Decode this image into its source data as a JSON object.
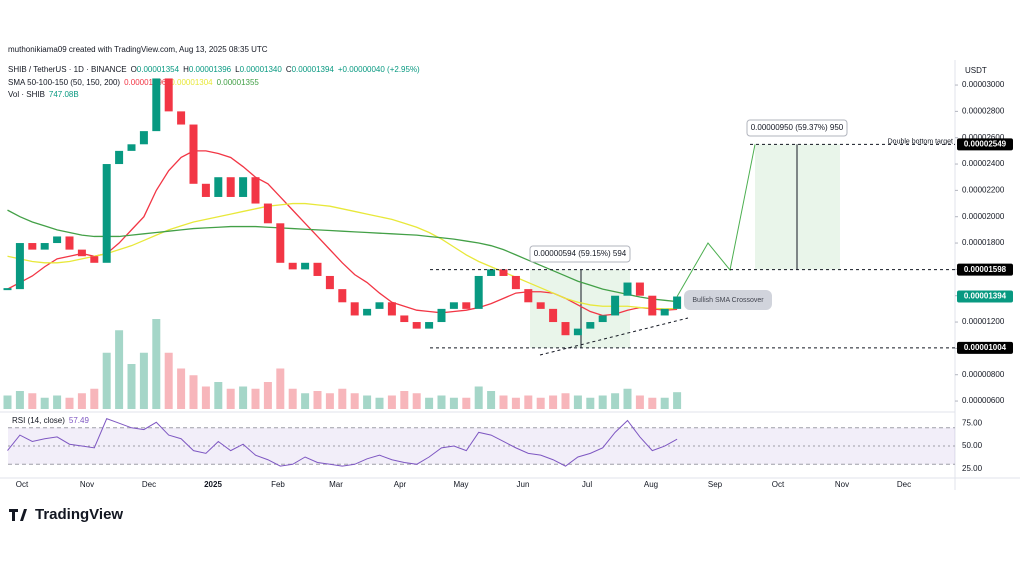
{
  "header": {
    "credit": "muthonikiama09 created with TradingView.com, Aug 13, 2025 08:35 UTC",
    "logo": "TradingView"
  },
  "chart_data": {
    "type": "candlestick",
    "symbol": "SHIB / TetherUS · 1D · BINANCE",
    "ohlc": [
      {
        "label": "O",
        "value": "0.00001354"
      },
      {
        "label": "H",
        "value": "0.00001396"
      },
      {
        "label": "L",
        "value": "0.00001340"
      },
      {
        "label": "C",
        "value": "0.00001394"
      }
    ],
    "change": "+0.00000040 (+2.95%)",
    "currency": "USDT",
    "xticks": [
      "Oct",
      "Nov",
      "Dec",
      "2025",
      "Feb",
      "Mar",
      "Apr",
      "May",
      "Jun",
      "Jul",
      "Aug",
      "Sep",
      "Oct",
      "Nov",
      "Dec"
    ],
    "ylim": [
      5.32e-06,
      3.175e-05
    ],
    "yticks": [
      {
        "value": 6e-06,
        "label": "0.00000600"
      },
      {
        "value": 8e-06,
        "label": "0.00000800"
      },
      {
        "value": 1e-05,
        "label": "0.00001000"
      },
      {
        "value": 1.2e-05,
        "label": "0.00001200"
      },
      {
        "value": 1.4e-05,
        "label": "0.00001400"
      },
      {
        "value": 1.6e-05,
        "label": "0.00001600"
      },
      {
        "value": 1.8e-05,
        "label": "0.00001800"
      },
      {
        "value": 2e-05,
        "label": "0.00002000"
      },
      {
        "value": 2.2e-05,
        "label": "0.00002200"
      },
      {
        "value": 2.4e-05,
        "label": "0.00002400"
      },
      {
        "value": 2.6e-05,
        "label": "0.00002600"
      },
      {
        "value": 2.8e-05,
        "label": "0.00002800"
      },
      {
        "value": 3e-05,
        "label": "0.00003000"
      }
    ],
    "close": [
      1.45e-05,
      1.8e-05,
      1.75e-05,
      1.8e-05,
      1.85e-05,
      1.75e-05,
      1.7e-05,
      1.65e-05,
      2.4e-05,
      2.5e-05,
      2.55e-05,
      2.65e-05,
      3.05e-05,
      2.8e-05,
      2.7e-05,
      2.25e-05,
      2.15e-05,
      2.3e-05,
      2.15e-05,
      2.3e-05,
      2.1e-05,
      1.95e-05,
      1.65e-05,
      1.6e-05,
      1.65e-05,
      1.55e-05,
      1.45e-05,
      1.35e-05,
      1.25e-05,
      1.3e-05,
      1.35e-05,
      1.25e-05,
      1.2e-05,
      1.15e-05,
      1.2e-05,
      1.3e-05,
      1.35e-05,
      1.3e-05,
      1.55e-05,
      1.6e-05,
      1.55e-05,
      1.45e-05,
      1.35e-05,
      1.3e-05,
      1.2e-05,
      1.1e-05,
      1.15e-05,
      1.2e-05,
      1.25e-05,
      1.4e-05,
      1.5e-05,
      1.4e-05,
      1.25e-05,
      1.3e-05,
      1.394e-05
    ],
    "up_color": "#089981",
    "down_color": "#f23645",
    "sma": {
      "label": "SMA 50-100-150 (50, 150, 200)",
      "series": [
        {
          "name": "0.00001296",
          "color": "#f23645",
          "values": [
            1.45e-05,
            1.5e-05,
            1.55e-05,
            1.62e-05,
            1.68e-05,
            1.7e-05,
            1.72e-05,
            1.7e-05,
            1.72e-05,
            1.8e-05,
            1.9e-05,
            2e-05,
            2.2e-05,
            2.35e-05,
            2.45e-05,
            2.5e-05,
            2.5e-05,
            2.48e-05,
            2.45e-05,
            2.38e-05,
            2.3e-05,
            2.25e-05,
            2.15e-05,
            2.05e-05,
            1.95e-05,
            1.85e-05,
            1.75e-05,
            1.65e-05,
            1.56e-05,
            1.5e-05,
            1.42e-05,
            1.35e-05,
            1.32e-05,
            1.29e-05,
            1.28e-05,
            1.27e-05,
            1.28e-05,
            1.29e-05,
            1.31e-05,
            1.34e-05,
            1.38e-05,
            1.42e-05,
            1.43e-05,
            1.43e-05,
            1.42e-05,
            1.38e-05,
            1.33e-05,
            1.28e-05,
            1.25e-05,
            1.26e-05,
            1.29e-05,
            1.31e-05,
            1.3e-05,
            1.29e-05,
            1.296e-05
          ]
        },
        {
          "name": "0.00001304",
          "color": "#e8e83a",
          "values": [
            1.7e-05,
            1.68e-05,
            1.66e-05,
            1.65e-05,
            1.65e-05,
            1.66e-05,
            1.68e-05,
            1.7e-05,
            1.72e-05,
            1.75e-05,
            1.78e-05,
            1.82e-05,
            1.86e-05,
            1.9e-05,
            1.93e-05,
            1.96e-05,
            1.98e-05,
            2e-05,
            2.02e-05,
            2.04e-05,
            2.06e-05,
            2.08e-05,
            2.09e-05,
            2.1e-05,
            2.1e-05,
            2.09e-05,
            2.08e-05,
            2.06e-05,
            2.04e-05,
            2.02e-05,
            2e-05,
            1.98e-05,
            1.95e-05,
            1.92e-05,
            1.88e-05,
            1.83e-05,
            1.77e-05,
            1.71e-05,
            1.66e-05,
            1.62e-05,
            1.58e-05,
            1.54e-05,
            1.5e-05,
            1.46e-05,
            1.42e-05,
            1.38e-05,
            1.35e-05,
            1.33e-05,
            1.32e-05,
            1.32e-05,
            1.32e-05,
            1.31e-05,
            1.305e-05,
            1.3e-05,
            1.304e-05
          ]
        },
        {
          "name": "0.00001355",
          "color": "#43a047",
          "values": [
            2.05e-05,
            2e-05,
            1.96e-05,
            1.93e-05,
            1.9e-05,
            1.88e-05,
            1.86e-05,
            1.85e-05,
            1.85e-05,
            1.85e-05,
            1.86e-05,
            1.87e-05,
            1.88e-05,
            1.89e-05,
            1.9e-05,
            1.91e-05,
            1.915e-05,
            1.92e-05,
            1.925e-05,
            1.925e-05,
            1.925e-05,
            1.92e-05,
            1.915e-05,
            1.91e-05,
            1.905e-05,
            1.9e-05,
            1.895e-05,
            1.89e-05,
            1.885e-05,
            1.88e-05,
            1.875e-05,
            1.87e-05,
            1.865e-05,
            1.86e-05,
            1.85e-05,
            1.84e-05,
            1.83e-05,
            1.815e-05,
            1.8e-05,
            1.78e-05,
            1.75e-05,
            1.71e-05,
            1.67e-05,
            1.63e-05,
            1.59e-05,
            1.55e-05,
            1.51e-05,
            1.48e-05,
            1.45e-05,
            1.43e-05,
            1.41e-05,
            1.39e-05,
            1.375e-05,
            1.365e-05,
            1.355e-05
          ]
        }
      ]
    },
    "volume": {
      "label": "Vol · SHIB",
      "last": "747.08B",
      "color": "#26a69a",
      "values": [
        600,
        800,
        700,
        500,
        600,
        500,
        700,
        900,
        2500,
        3500,
        2000,
        2500,
        4000,
        2500,
        1800,
        1500,
        1000,
        1200,
        900,
        1000,
        900,
        1200,
        1800,
        900,
        700,
        800,
        700,
        900,
        700,
        600,
        500,
        600,
        800,
        700,
        500,
        600,
        500,
        500,
        1000,
        800,
        600,
        500,
        600,
        500,
        600,
        700,
        600,
        500,
        600,
        700,
        900,
        600,
        500,
        500,
        747.08
      ]
    },
    "levels": [
      {
        "value": 2.549e-05,
        "color": "#000000",
        "note": "Double bottom target"
      },
      {
        "value": 1.598e-05,
        "color": "#000000"
      },
      {
        "value": 1.394e-05,
        "color": "#089981"
      },
      {
        "value": 1.004e-05,
        "color": "#000000"
      }
    ],
    "measures": [
      "0.00000594 (59.15%) 594",
      "0.00000950 (59.37%) 950"
    ],
    "annotation": "Bullish SMA Crossover",
    "rsi": {
      "label": "RSI (14, close)",
      "value": "57.49",
      "color": "#7e57c2",
      "ylim": [
        15,
        84
      ],
      "band": [
        30,
        70
      ],
      "yticks": [
        {
          "value": 25,
          "label": "25.00"
        },
        {
          "value": 50,
          "label": "50.00"
        },
        {
          "value": 75,
          "label": "75.00"
        }
      ],
      "values": [
        45,
        62,
        55,
        58,
        60,
        52,
        50,
        48,
        80,
        75,
        70,
        68,
        76,
        62,
        58,
        45,
        42,
        55,
        45,
        52,
        40,
        35,
        28,
        30,
        38,
        32,
        30,
        28,
        30,
        36,
        40,
        35,
        32,
        30,
        38,
        48,
        50,
        45,
        65,
        62,
        55,
        48,
        42,
        40,
        35,
        28,
        38,
        42,
        48,
        65,
        78,
        60,
        45,
        50,
        57.49
      ]
    }
  }
}
